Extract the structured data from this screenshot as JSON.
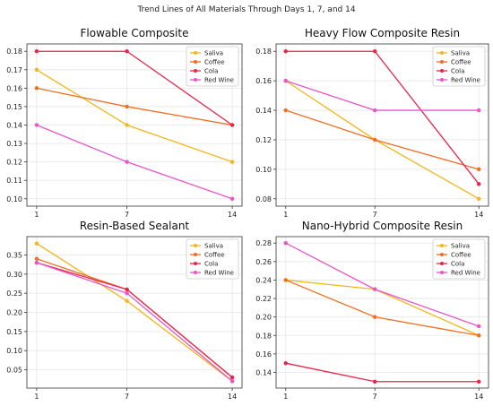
{
  "figure": {
    "suptitle": "Trend Lines of All Materials Through Days 1, 7, and 14"
  },
  "colors": {
    "Saliva": "#f2b619",
    "Coffee": "#f26d21",
    "Cola": "#e8254a",
    "Red Wine": "#e855c8"
  },
  "chart_data": [
    {
      "type": "line",
      "title": "Flowable Composite",
      "x": [
        1,
        7,
        14
      ],
      "xticks": [
        "1",
        "7",
        "14"
      ],
      "ylim": [
        0.096,
        0.184
      ],
      "yticks": [
        0.1,
        0.11,
        0.12,
        0.13,
        0.14,
        0.15,
        0.16,
        0.17,
        0.18
      ],
      "ytick_labels": [
        "0.10",
        "0.11",
        "0.12",
        "0.13",
        "0.14",
        "0.15",
        "0.16",
        "0.17",
        "0.18"
      ],
      "grid": true,
      "legend": "top-right",
      "series": [
        {
          "name": "Saliva",
          "values": [
            0.17,
            0.14,
            0.12
          ]
        },
        {
          "name": "Coffee",
          "values": [
            0.16,
            0.15,
            0.14
          ]
        },
        {
          "name": "Cola",
          "values": [
            0.18,
            0.18,
            0.14
          ]
        },
        {
          "name": "Red Wine",
          "values": [
            0.14,
            0.12,
            0.1
          ]
        }
      ]
    },
    {
      "type": "line",
      "title": "Heavy Flow Composite Resin",
      "x": [
        1,
        7,
        14
      ],
      "xticks": [
        "1",
        "7",
        "14"
      ],
      "ylim": [
        0.075,
        0.185
      ],
      "yticks": [
        0.08,
        0.1,
        0.12,
        0.14,
        0.16,
        0.18
      ],
      "ytick_labels": [
        "0.08",
        "0.10",
        "0.12",
        "0.14",
        "0.16",
        "0.18"
      ],
      "grid": true,
      "legend": "top-right",
      "series": [
        {
          "name": "Saliva",
          "values": [
            0.16,
            0.12,
            0.08
          ]
        },
        {
          "name": "Coffee",
          "values": [
            0.14,
            0.12,
            0.1
          ]
        },
        {
          "name": "Cola",
          "values": [
            0.18,
            0.18,
            0.09
          ]
        },
        {
          "name": "Red Wine",
          "values": [
            0.16,
            0.14,
            0.14
          ]
        }
      ]
    },
    {
      "type": "line",
      "title": "Resin-Based Sealant",
      "x": [
        1,
        7,
        14
      ],
      "xticks": [
        "1",
        "7",
        "14"
      ],
      "ylim": [
        0.002,
        0.398
      ],
      "yticks": [
        0.05,
        0.1,
        0.15,
        0.2,
        0.25,
        0.3,
        0.35
      ],
      "ytick_labels": [
        "0.05",
        "0.10",
        "0.15",
        "0.20",
        "0.25",
        "0.30",
        "0.35"
      ],
      "grid": true,
      "legend": "top-right",
      "series": [
        {
          "name": "Saliva",
          "values": [
            0.38,
            0.23,
            0.02
          ]
        },
        {
          "name": "Coffee",
          "values": [
            0.34,
            0.26,
            0.03
          ]
        },
        {
          "name": "Cola",
          "values": [
            0.33,
            0.26,
            0.03
          ]
        },
        {
          "name": "Red Wine",
          "values": [
            0.33,
            0.25,
            0.02
          ]
        }
      ]
    },
    {
      "type": "line",
      "title": "Nano-Hybrid Composite Resin",
      "x": [
        1,
        7,
        14
      ],
      "xticks": [
        "1",
        "7",
        "14"
      ],
      "ylim": [
        0.123,
        0.287
      ],
      "yticks": [
        0.14,
        0.16,
        0.18,
        0.2,
        0.22,
        0.24,
        0.26,
        0.28
      ],
      "ytick_labels": [
        "0.14",
        "0.16",
        "0.18",
        "0.20",
        "0.22",
        "0.24",
        "0.26",
        "0.28"
      ],
      "grid": true,
      "legend": "top-right",
      "series": [
        {
          "name": "Saliva",
          "values": [
            0.24,
            0.23,
            0.18
          ]
        },
        {
          "name": "Coffee",
          "values": [
            0.24,
            0.2,
            0.18
          ]
        },
        {
          "name": "Cola",
          "values": [
            0.15,
            0.13,
            0.13
          ]
        },
        {
          "name": "Red Wine",
          "values": [
            0.28,
            0.23,
            0.19
          ]
        }
      ]
    }
  ]
}
